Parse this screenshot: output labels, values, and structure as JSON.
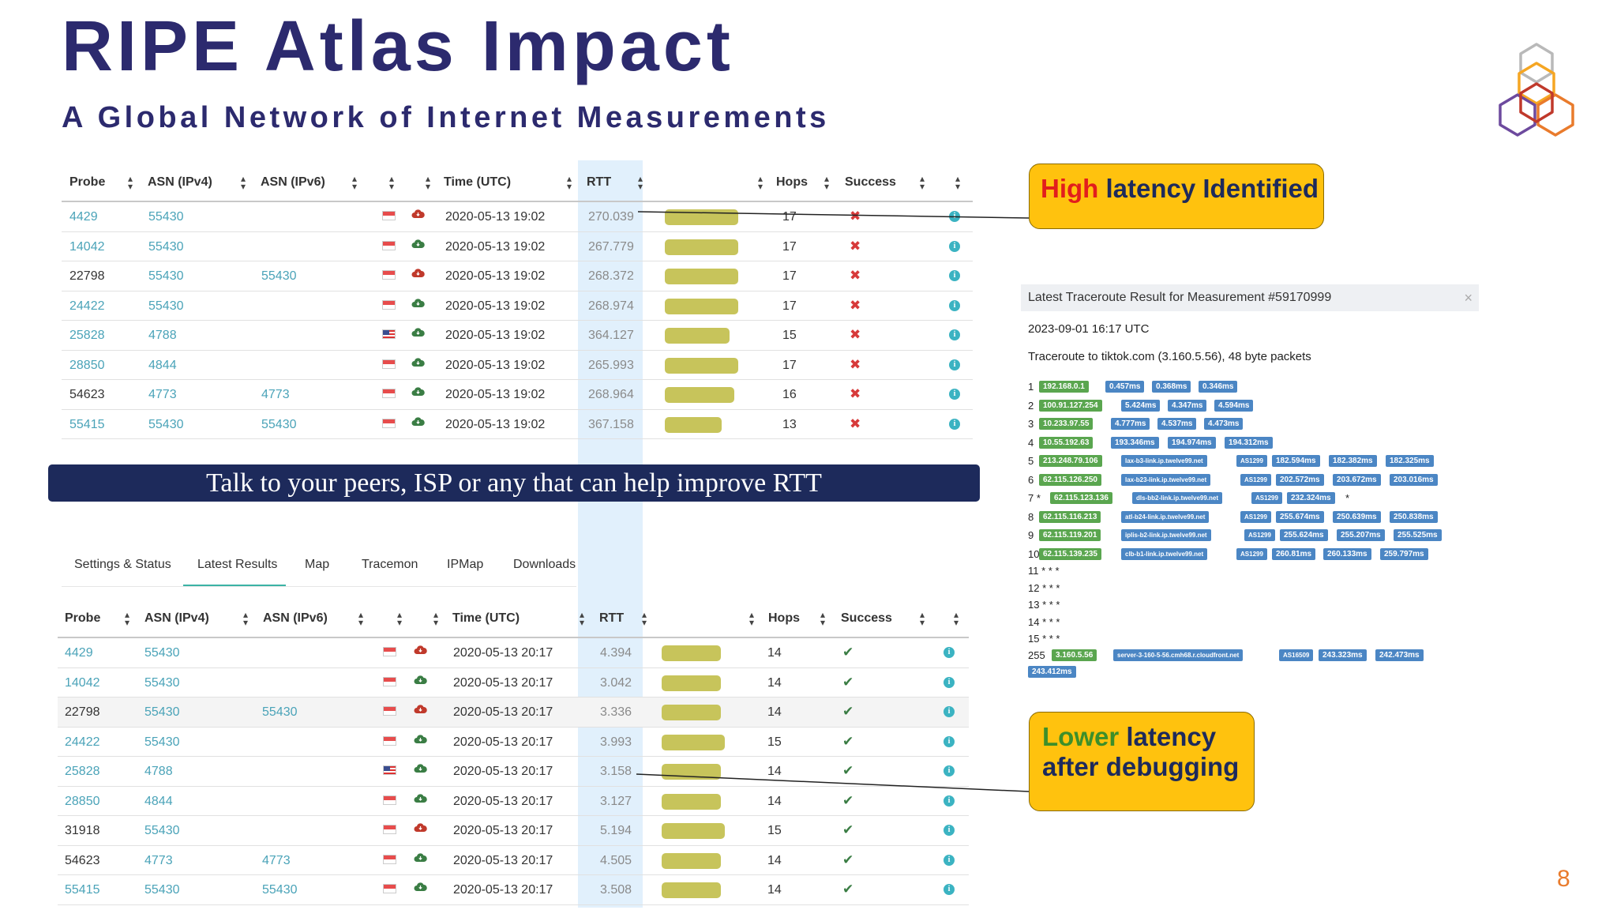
{
  "slide": {
    "title": "RIPE Atlas Impact",
    "subtitle": "A Global Network of Internet Measurements",
    "page_number": "8",
    "banner": "Talk to your peers, ISP or any that can help improve RTT",
    "callout_high": {
      "highlight": "High",
      "rest": " latency Identified"
    },
    "callout_low": {
      "highlight": "Lower",
      "rest_line1": " latency",
      "line2": "after debugging"
    }
  },
  "columns": {
    "probe": "Probe",
    "asn4": "ASN (IPv4)",
    "asn6": "ASN (IPv6)",
    "time": "Time (UTC)",
    "rtt": "RTT",
    "hops": "Hops",
    "success": "Success"
  },
  "table1": [
    {
      "probe": "4429",
      "asn4": "55430",
      "asn6": "",
      "flag": "sg",
      "cloud": "red",
      "time": "2020-05-13 19:02",
      "rtt": "270.039",
      "bar_frac": 0.93,
      "hops": "17",
      "ok": false
    },
    {
      "probe": "14042",
      "asn4": "55430",
      "asn6": "",
      "flag": "sg",
      "cloud": "green",
      "time": "2020-05-13 19:02",
      "rtt": "267.779",
      "bar_frac": 0.93,
      "hops": "17",
      "ok": false
    },
    {
      "probe": "22798",
      "asn4": "55430",
      "asn6": "55430",
      "flag": "sg",
      "cloud": "red",
      "time": "2020-05-13 19:02",
      "rtt": "268.372",
      "bar_frac": 0.93,
      "hops": "17",
      "ok": false
    },
    {
      "probe": "24422",
      "asn4": "55430",
      "asn6": "",
      "flag": "sg",
      "cloud": "green",
      "time": "2020-05-13 19:02",
      "rtt": "268.974",
      "bar_frac": 0.93,
      "hops": "17",
      "ok": false
    },
    {
      "probe": "25828",
      "asn4": "4788",
      "asn6": "",
      "flag": "us",
      "cloud": "green",
      "time": "2020-05-13 19:02",
      "rtt": "364.127",
      "bar_frac": 0.82,
      "hops": "15",
      "ok": false
    },
    {
      "probe": "28850",
      "asn4": "4844",
      "asn6": "",
      "flag": "sg",
      "cloud": "green",
      "time": "2020-05-13 19:02",
      "rtt": "265.993",
      "bar_frac": 0.93,
      "hops": "17",
      "ok": false
    },
    {
      "probe": "54623",
      "asn4": "4773",
      "asn6": "4773",
      "flag": "sg",
      "cloud": "green",
      "time": "2020-05-13 19:02",
      "rtt": "268.964",
      "bar_frac": 0.88,
      "hops": "16",
      "ok": false
    },
    {
      "probe": "55415",
      "asn4": "55430",
      "asn6": "55430",
      "flag": "sg",
      "cloud": "green",
      "time": "2020-05-13 19:02",
      "rtt": "367.158",
      "bar_frac": 0.72,
      "hops": "13",
      "ok": false
    }
  ],
  "tabs": [
    "Settings & Status",
    "Latest Results",
    "Map",
    "Tracemon",
    "IPMap",
    "Downloads"
  ],
  "table2": [
    {
      "probe": "4429",
      "asn4": "55430",
      "asn6": "",
      "flag": "sg",
      "cloud": "red",
      "time": "2020-05-13 20:17",
      "rtt": "4.394",
      "bar_frac": 0.87,
      "hops": "14",
      "ok": true
    },
    {
      "probe": "14042",
      "asn4": "55430",
      "asn6": "",
      "flag": "sg",
      "cloud": "green",
      "time": "2020-05-13 20:17",
      "rtt": "3.042",
      "bar_frac": 0.87,
      "hops": "14",
      "ok": true
    },
    {
      "probe": "22798",
      "asn4": "55430",
      "asn6": "55430",
      "flag": "sg",
      "cloud": "red",
      "time": "2020-05-13 20:17",
      "rtt": "3.336",
      "bar_frac": 0.87,
      "hops": "14",
      "ok": true
    },
    {
      "probe": "24422",
      "asn4": "55430",
      "asn6": "",
      "flag": "sg",
      "cloud": "green",
      "time": "2020-05-13 20:17",
      "rtt": "3.993",
      "bar_frac": 0.93,
      "hops": "15",
      "ok": true
    },
    {
      "probe": "25828",
      "asn4": "4788",
      "asn6": "",
      "flag": "us",
      "cloud": "green",
      "time": "2020-05-13 20:17",
      "rtt": "3.158",
      "bar_frac": 0.87,
      "hops": "14",
      "ok": true
    },
    {
      "probe": "28850",
      "asn4": "4844",
      "asn6": "",
      "flag": "sg",
      "cloud": "green",
      "time": "2020-05-13 20:17",
      "rtt": "3.127",
      "bar_frac": 0.87,
      "hops": "14",
      "ok": true
    },
    {
      "probe": "31918",
      "asn4": "55430",
      "asn6": "",
      "flag": "sg",
      "cloud": "red",
      "time": "2020-05-13 20:17",
      "rtt": "5.194",
      "bar_frac": 0.93,
      "hops": "15",
      "ok": true
    },
    {
      "probe": "54623",
      "asn4": "4773",
      "asn6": "4773",
      "flag": "sg",
      "cloud": "green",
      "time": "2020-05-13 20:17",
      "rtt": "4.505",
      "bar_frac": 0.87,
      "hops": "14",
      "ok": true
    },
    {
      "probe": "55415",
      "asn4": "55430",
      "asn6": "55430",
      "flag": "sg",
      "cloud": "green",
      "time": "2020-05-13 20:17",
      "rtt": "3.508",
      "bar_frac": 0.87,
      "hops": "14",
      "ok": true
    }
  ],
  "traceroute": {
    "header": "Latest Traceroute Result for Measurement #59170999",
    "close": "×",
    "timestamp": "2023-09-01 16:17 UTC",
    "target": "Traceroute to tiktok.com (3.160.5.56), 48 byte packets",
    "hops": [
      {
        "n": "1",
        "ip": "192.168.0.1",
        "host": "",
        "as": "",
        "rtts": [
          "0.457ms",
          "0.368ms",
          "0.346ms"
        ]
      },
      {
        "n": "2",
        "ip": "100.91.127.254",
        "host": "",
        "as": "",
        "rtts": [
          "5.424ms",
          "4.347ms",
          "4.594ms"
        ]
      },
      {
        "n": "3",
        "ip": "10.233.97.55",
        "host": "",
        "as": "",
        "rtts": [
          "4.777ms",
          "4.537ms",
          "4.473ms"
        ]
      },
      {
        "n": "4",
        "ip": "10.55.192.63",
        "host": "",
        "as": "",
        "rtts": [
          "193.346ms",
          "194.974ms",
          "194.312ms"
        ]
      },
      {
        "n": "5",
        "ip": "213.248.79.106",
        "host": "lax-b3-link.ip.twelve99.net",
        "as": "AS1299",
        "rtts": [
          "182.594ms",
          "182.382ms",
          "182.325ms"
        ]
      },
      {
        "n": "6",
        "ip": "62.115.126.250",
        "host": "lax-b23-link.ip.twelve99.net",
        "as": "AS1299",
        "rtts": [
          "202.572ms",
          "203.672ms",
          "203.016ms"
        ]
      },
      {
        "n": "7 *",
        "ip": "62.115.123.136",
        "host": "dls-bb2-link.ip.twelve99.net",
        "as": "AS1299",
        "rtts": [
          "232.324ms"
        ],
        "tail": "*"
      },
      {
        "n": "8",
        "ip": "62.115.116.213",
        "host": "atl-b24-link.ip.twelve99.net",
        "as": "AS1299",
        "rtts": [
          "255.674ms",
          "250.639ms",
          "250.838ms"
        ]
      },
      {
        "n": "9",
        "ip": "62.115.119.201",
        "host": "iplis-b2-link.ip.twelve99.net",
        "as": "AS1299",
        "rtts": [
          "255.624ms",
          "255.207ms",
          "255.525ms"
        ]
      },
      {
        "n": "10",
        "ip": "62.115.139.235",
        "host": "clb-b1-link.ip.twelve99.net",
        "as": "AS1299",
        "rtts": [
          "260.81ms",
          "260.133ms",
          "259.797ms"
        ]
      }
    ],
    "star_hops": [
      "11 * * *",
      "12 * * *",
      "13 * * *",
      "14 * * *",
      "15 * * *"
    ],
    "last_hop": {
      "n": "255",
      "ip": "3.160.5.56",
      "host": "server-3-160-5-56.cmh68.r.cloudfront.net",
      "as": "AS16509",
      "rtts": [
        "243.323ms",
        "242.473ms",
        "243.412ms"
      ]
    }
  },
  "colors": {
    "title": "#2c2a6e",
    "banner_bg": "#1d2a5b",
    "callout_bg": "#ffc20e",
    "bar": "#c7c45b",
    "link": "#4aa3b8",
    "pill_green": "#5aa64f",
    "pill_blue": "#4b86c4",
    "logo": "#e97b2c"
  },
  "icons": [
    "sort-icon",
    "flag-sg-icon",
    "flag-us-icon",
    "cloud-icon",
    "x-mark-icon",
    "check-icon",
    "info-icon",
    "close-icon",
    "ripe-logo"
  ]
}
